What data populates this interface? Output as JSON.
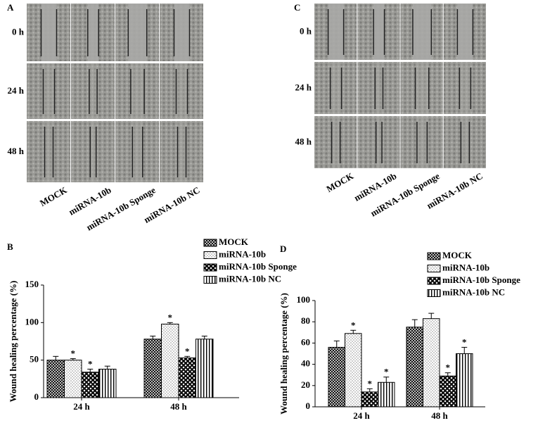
{
  "panels": [
    {
      "letter": "A",
      "rows": [
        "0 h",
        "24 h",
        "48 h"
      ],
      "columns": [
        "MOCK",
        "miRNA-10b",
        "miRNA-10b Sponge",
        "miRNA-10b NC"
      ]
    },
    {
      "letter": "C",
      "rows": [
        "0 h",
        "24 h",
        "48 h"
      ],
      "columns": [
        "MOCK",
        "miRNA-10b",
        "miRNA-10b Sponge",
        "miRNA-10b NC"
      ]
    }
  ],
  "chart_data": [
    {
      "type": "bar",
      "panel": "B",
      "ylabel": "Wound healing percentage (%)",
      "categories": [
        "24 h",
        "48 h"
      ],
      "ylim": [
        0,
        150
      ],
      "yticks": [
        0,
        50,
        100,
        150
      ],
      "legend": "top-right",
      "series": [
        {
          "name": "MOCK",
          "pattern": "crosshatch",
          "values": [
            50,
            78
          ],
          "errors": [
            5,
            4
          ],
          "significance": [
            null,
            null
          ]
        },
        {
          "name": "miRNA-10b",
          "pattern": "dots",
          "values": [
            50,
            98
          ],
          "errors": [
            2,
            2
          ],
          "significance": [
            "*",
            "*"
          ]
        },
        {
          "name": "miRNA-10b Sponge",
          "pattern": "checker",
          "values": [
            34,
            53
          ],
          "errors": [
            4,
            2
          ],
          "significance": [
            "*",
            "*"
          ]
        },
        {
          "name": "miRNA-10b NC",
          "pattern": "stripes",
          "values": [
            38,
            78
          ],
          "errors": [
            4,
            4
          ],
          "significance": [
            null,
            null
          ]
        }
      ]
    },
    {
      "type": "bar",
      "panel": "D",
      "ylabel": "Wound healing percentage (%)",
      "categories": [
        "24 h",
        "48 h"
      ],
      "ylim": [
        0,
        100
      ],
      "yticks": [
        0,
        20,
        40,
        60,
        80,
        100
      ],
      "legend": "top-right",
      "series": [
        {
          "name": "MOCK",
          "pattern": "crosshatch",
          "values": [
            56,
            75
          ],
          "errors": [
            6,
            7
          ],
          "significance": [
            null,
            null
          ]
        },
        {
          "name": "miRNA-10b",
          "pattern": "dots",
          "values": [
            69,
            83
          ],
          "errors": [
            3,
            5
          ],
          "significance": [
            "*",
            null
          ]
        },
        {
          "name": "miRNA-10b Sponge",
          "pattern": "checker",
          "values": [
            14,
            29
          ],
          "errors": [
            3,
            3
          ],
          "significance": [
            "*",
            "*"
          ]
        },
        {
          "name": "miRNA-10b NC",
          "pattern": "stripes",
          "values": [
            23,
            50
          ],
          "errors": [
            5,
            6
          ],
          "significance": [
            "*",
            "*"
          ]
        }
      ]
    }
  ]
}
